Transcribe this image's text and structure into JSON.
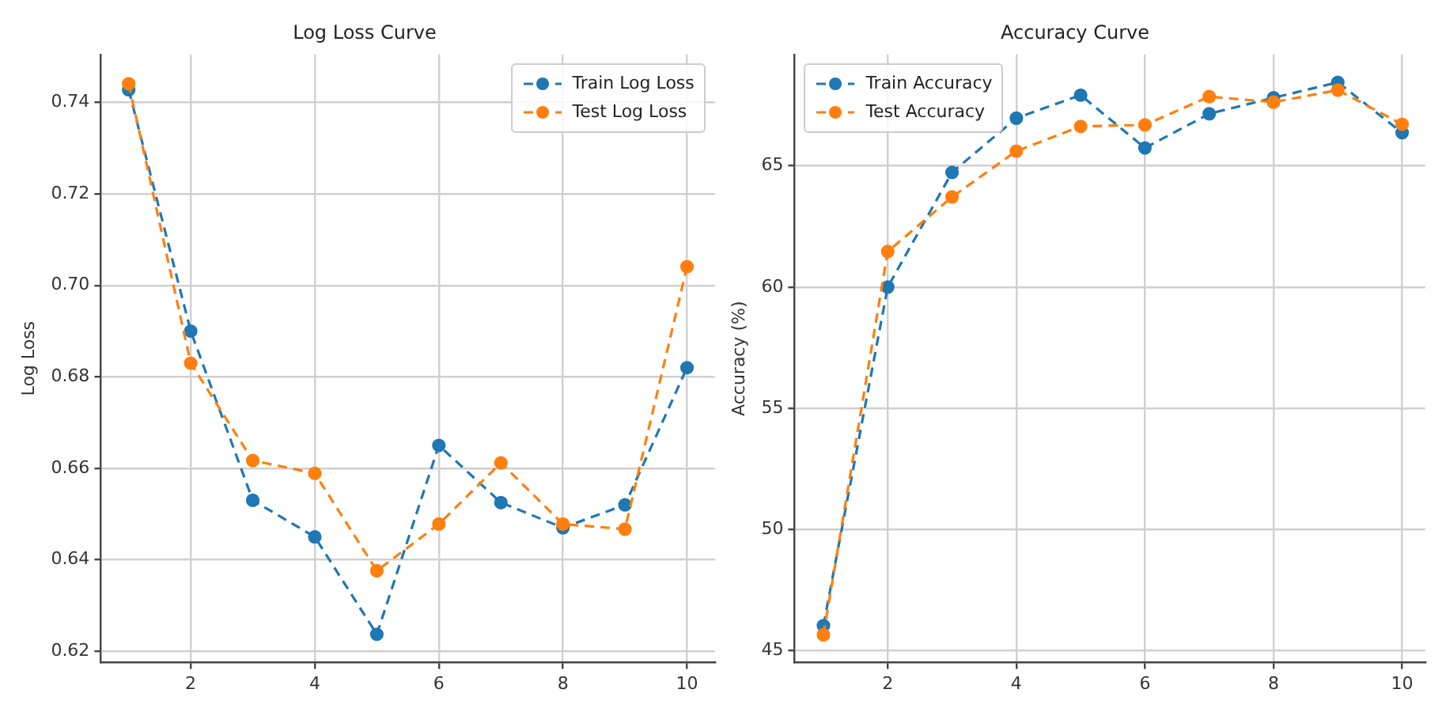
{
  "chart_data": [
    {
      "type": "line",
      "title": "Log Loss Curve",
      "ylabel": "Log Loss",
      "x": [
        1,
        2,
        3,
        4,
        5,
        6,
        7,
        8,
        9,
        10
      ],
      "series": [
        {
          "name": "Train Log Loss",
          "color": "#1f77b4",
          "values": [
            0.7428,
            0.69,
            0.653,
            0.645,
            0.6237,
            0.665,
            0.6525,
            0.647,
            0.652,
            0.682
          ]
        },
        {
          "name": "Test Log Loss",
          "color": "#ff7f0e",
          "values": [
            0.7441,
            0.683,
            0.6617,
            0.6589,
            0.6376,
            0.6478,
            0.6612,
            0.6478,
            0.6467,
            0.7041
          ]
        }
      ],
      "xlim": [
        0.55,
        10.45
      ],
      "xticks": [
        2,
        4,
        6,
        8,
        10
      ],
      "ylim": [
        0.6175,
        0.7505
      ],
      "yticks": [
        0.62,
        0.64,
        0.66,
        0.68,
        {
          "value": 0.7,
          "label": "0.70"
        },
        0.72,
        0.74
      ],
      "grid": true,
      "legend": "top right",
      "marker": "circle",
      "line_style": "dashed"
    },
    {
      "type": "line",
      "title": "Accuracy Curve",
      "ylabel": "Accuracy (%)",
      "x": [
        1,
        2,
        3,
        4,
        5,
        6,
        7,
        8,
        9,
        10
      ],
      "series": [
        {
          "name": "Train Accuracy",
          "color": "#1f77b4",
          "values": [
            46.03,
            60.0,
            64.73,
            66.97,
            67.92,
            65.74,
            67.15,
            67.81,
            68.45,
            66.37
          ]
        },
        {
          "name": "Test Accuracy",
          "color": "#ff7f0e",
          "values": [
            45.65,
            61.47,
            63.72,
            65.61,
            66.63,
            66.69,
            67.86,
            67.63,
            68.13,
            66.72
          ]
        }
      ],
      "xlim": [
        0.55,
        10.36
      ],
      "xticks": [
        2,
        4,
        6,
        8,
        10
      ],
      "ylim": [
        44.5,
        69.6
      ],
      "yticks": [
        45,
        50,
        55,
        60,
        65
      ],
      "grid": true,
      "legend": "top left",
      "marker": "circle",
      "line_style": "dashed"
    }
  ]
}
